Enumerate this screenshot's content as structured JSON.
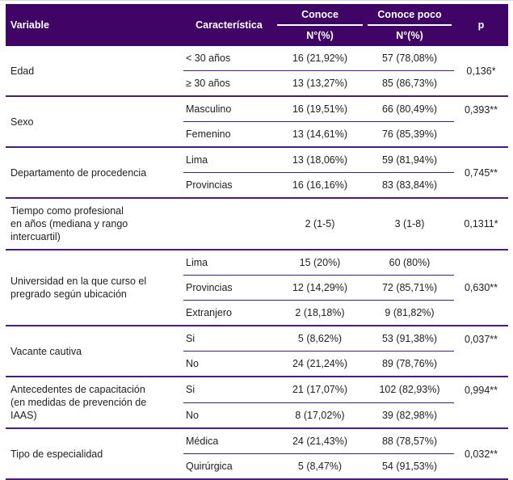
{
  "colors": {
    "header_bg": "#3F0466",
    "rule_purple": "#432078",
    "header_text": "#ffffff",
    "body_text": "#212121"
  },
  "table": {
    "header": {
      "variable": "Variable",
      "caracteristica": "Característica",
      "conoce": "Conoce",
      "conoce_poco": "Conoce poco",
      "n_label": "N°(%)",
      "p": "p"
    },
    "sections": [
      {
        "variable": "Edad",
        "p": "0,136*",
        "p_align": "middle",
        "rows": [
          {
            "caracteristica": "< 30 años",
            "conoce": "16 (21,92%)",
            "conoce_poco": "57 (78,08%)"
          },
          {
            "caracteristica": "≥ 30 años",
            "conoce": "13 (13,27%)",
            "conoce_poco": "85 (86,73%)"
          }
        ]
      },
      {
        "variable": "Sexo",
        "p": "0,393**",
        "p_align": "top",
        "rows": [
          {
            "caracteristica": "Masculino",
            "conoce": "16 (19,51%)",
            "conoce_poco": "66 (80,49%)"
          },
          {
            "caracteristica": "Femenino",
            "conoce": "13 (14,61%)",
            "conoce_poco": "76 (85,39%)"
          }
        ]
      },
      {
        "variable": "Departamento de procedencia",
        "p": "0,745**",
        "p_align": "middle",
        "rows": [
          {
            "caracteristica": "Lima",
            "conoce": "13 (18,06%)",
            "conoce_poco": "59 (81,94%)"
          },
          {
            "caracteristica": "Provincias",
            "conoce": "16 (16,16%)",
            "conoce_poco": "83 (83,84%)"
          }
        ]
      },
      {
        "variable": "Tiempo como profesional\nen años (mediana y rango\nintercuartil)",
        "p": "0,1311*",
        "p_align": "middle",
        "rows": [
          {
            "caracteristica": "",
            "conoce": "2 (1-5)",
            "conoce_poco": "3 (1-8)"
          }
        ]
      },
      {
        "variable": "Universidad en la que curso el\npregrado según ubicación",
        "p": "0,630**",
        "p_align": "middle",
        "rows": [
          {
            "caracteristica": "Lima",
            "conoce": "15 (20%)",
            "conoce_poco": "60 (80%)"
          },
          {
            "caracteristica": "Provincias",
            "conoce": "12 (14,29%)",
            "conoce_poco": "72 (85,71%)"
          },
          {
            "caracteristica": "Extranjero",
            "conoce": "2 (18,18%)",
            "conoce_poco": "9 (81,82%)"
          }
        ]
      },
      {
        "variable": "Vacante cautiva",
        "p": "0,037**",
        "p_align": "top",
        "rows": [
          {
            "caracteristica": "Si",
            "conoce": "5 (8,62%)",
            "conoce_poco": "53 (91,38%)"
          },
          {
            "caracteristica": "No",
            "conoce": "24 (21,24%)",
            "conoce_poco": "89 (78,76%)"
          }
        ]
      },
      {
        "variable": "Antecedentes de capacitación\n(en medidas de prevención de\nIAAS)",
        "p": "0,994**",
        "p_align": "top",
        "rows": [
          {
            "caracteristica": "Si",
            "conoce": "21 (17,07%)",
            "conoce_poco": "102 (82,93%)"
          },
          {
            "caracteristica": "No",
            "conoce": "8 (17,02%)",
            "conoce_poco": "39 (82,98%)"
          }
        ]
      },
      {
        "variable": "Tipo de especialidad",
        "p": "0,032**",
        "p_align": "middle",
        "rows": [
          {
            "caracteristica": "Médica",
            "conoce": "24 (21,43%)",
            "conoce_poco": "88 (78,57%)"
          },
          {
            "caracteristica": "Quirúrgica",
            "conoce": "5 (8,47%)",
            "conoce_poco": "54 (91,53%)"
          }
        ]
      }
    ]
  }
}
